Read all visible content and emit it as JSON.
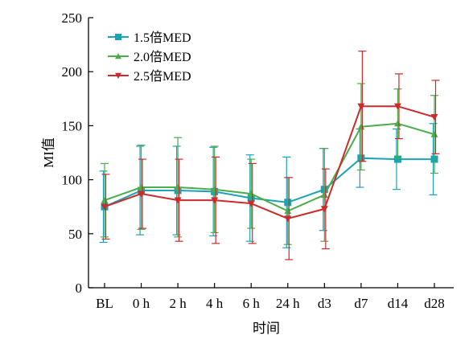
{
  "chart_data": {
    "type": "line",
    "xlabel": "时间",
    "ylabel": "MI值",
    "ylim": [
      0,
      250
    ],
    "yticks": [
      0,
      50,
      100,
      150,
      200,
      250
    ],
    "categories": [
      "BL",
      "0 h",
      "2 h",
      "4 h",
      "6 h",
      "24 h",
      "d3",
      "d7",
      "d14",
      "d28"
    ],
    "legend_position": "top-left",
    "grid": false,
    "series": [
      {
        "name": "1.5倍MED",
        "color": "#1aa3b5",
        "marker": "square",
        "values": [
          75,
          90,
          90,
          89,
          83,
          79,
          91,
          120,
          119,
          119
        ],
        "error": [
          33,
          41,
          41,
          41,
          40,
          42,
          38,
          27,
          28,
          33
        ]
      },
      {
        "name": "2.0倍MED",
        "color": "#4aad4a",
        "marker": "triangle-up",
        "values": [
          81,
          93,
          93,
          91,
          87,
          71,
          86,
          149,
          152,
          142
        ],
        "error": [
          34,
          39,
          46,
          40,
          32,
          31,
          43,
          40,
          32,
          36
        ]
      },
      {
        "name": "2.5倍MED",
        "color": "#cc2b2b",
        "marker": "triangle-down",
        "values": [
          75,
          87,
          81,
          81,
          78,
          64,
          73,
          168,
          168,
          158
        ],
        "error": [
          30,
          32,
          38,
          40,
          37,
          38,
          37,
          51,
          30,
          34
        ]
      }
    ]
  }
}
